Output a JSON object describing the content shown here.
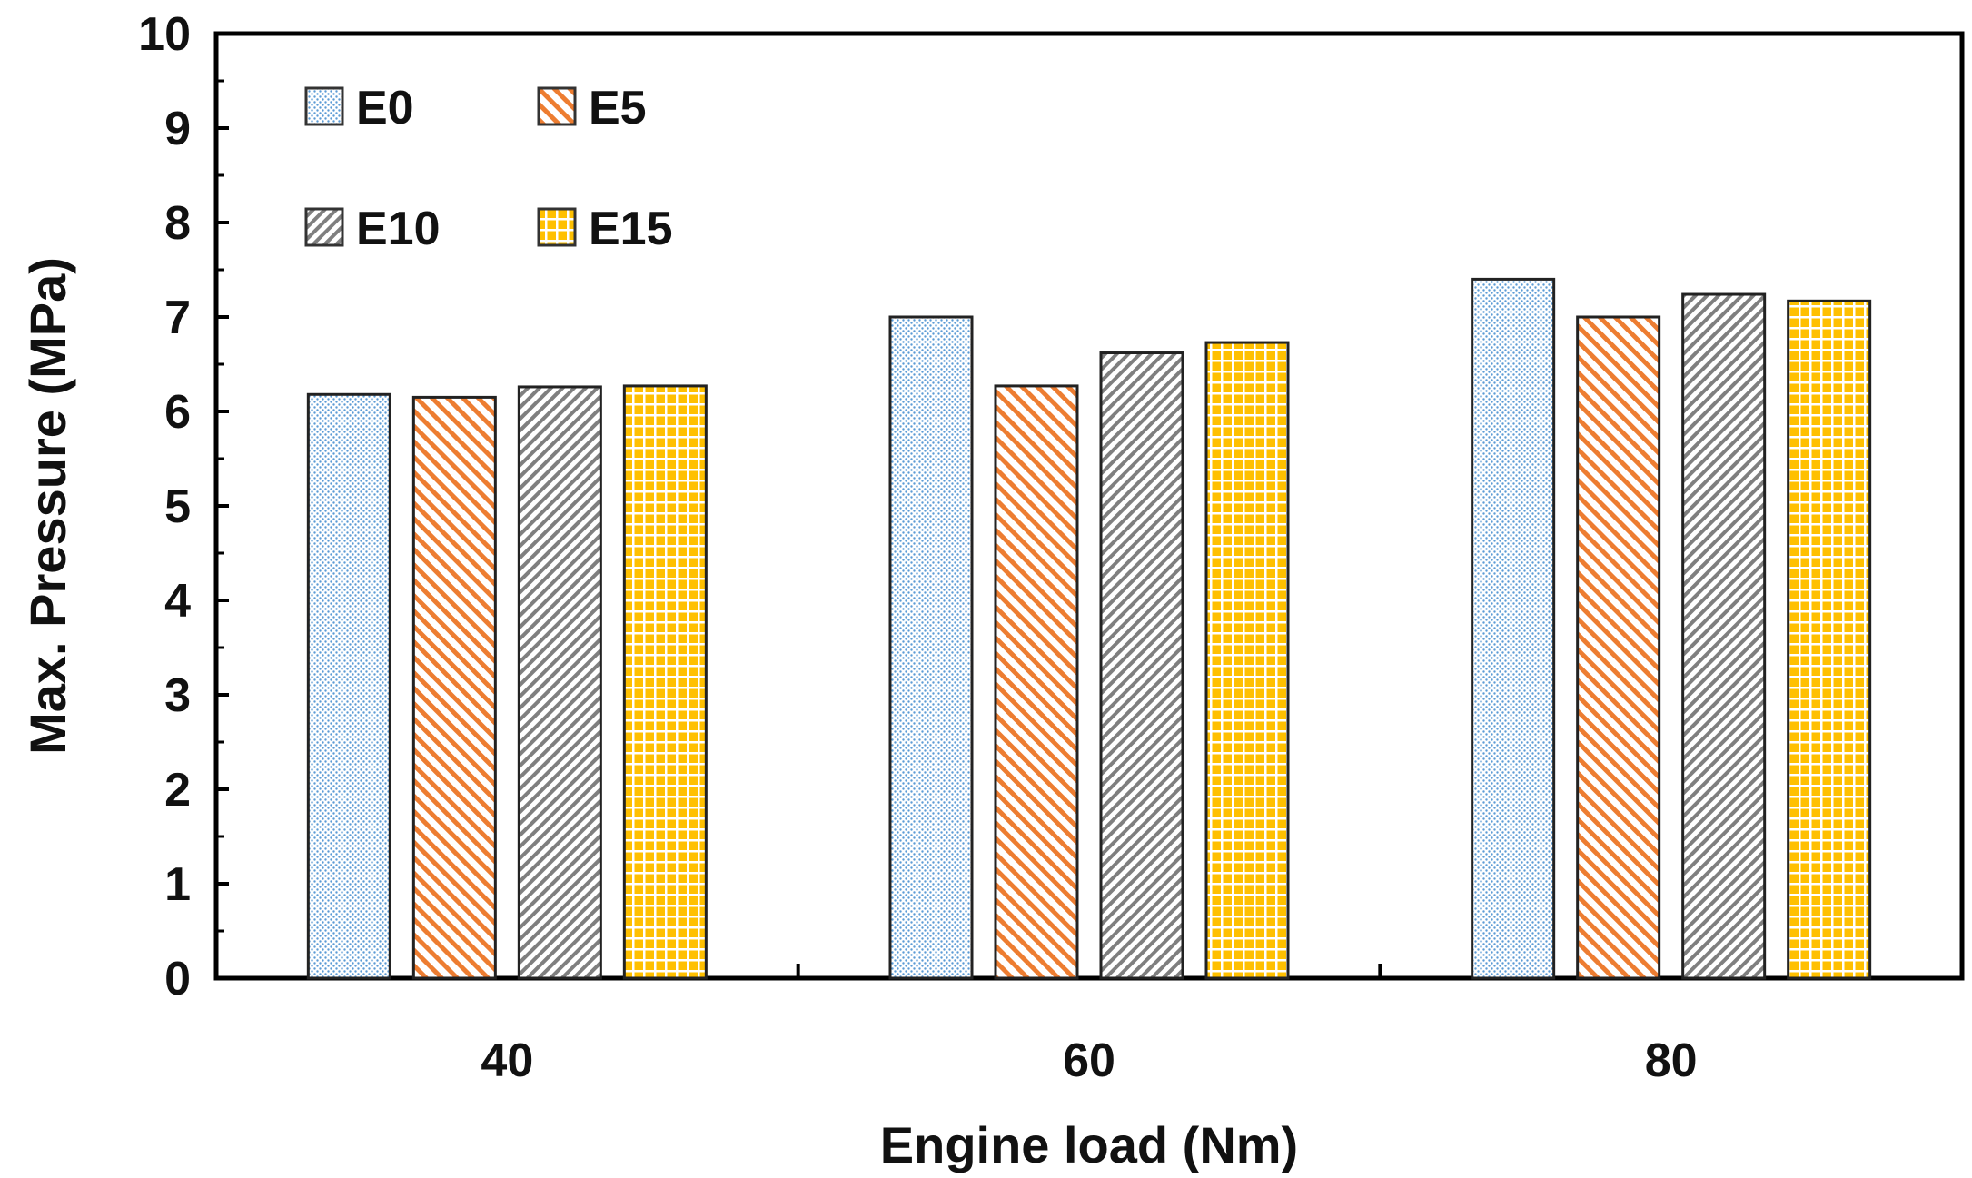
{
  "chart_data": {
    "type": "bar",
    "title": "",
    "xlabel": "Engine load (Nm)",
    "ylabel": "Max. Pressure (MPa)",
    "ylim": [
      0,
      10
    ],
    "yticks": [
      "0",
      "1",
      "2",
      "3",
      "4",
      "5",
      "6",
      "7",
      "8",
      "9",
      "10"
    ],
    "categories": [
      "40",
      "60",
      "80"
    ],
    "series": [
      {
        "name": "E0",
        "values": [
          6.18,
          7.0,
          7.4
        ],
        "color": "#5b9bd5",
        "pattern": "dots"
      },
      {
        "name": "E5",
        "values": [
          6.15,
          6.27,
          7.0
        ],
        "color": "#ed7d31",
        "pattern": "diagonal"
      },
      {
        "name": "E10",
        "values": [
          6.26,
          6.62,
          7.24
        ],
        "color": "#7f7f7f",
        "pattern": "diagonal-dense"
      },
      {
        "name": "E15",
        "values": [
          6.27,
          6.73,
          7.17
        ],
        "color": "#ffc000",
        "pattern": "grid"
      }
    ],
    "legend_position": "top-left",
    "grid": false
  }
}
